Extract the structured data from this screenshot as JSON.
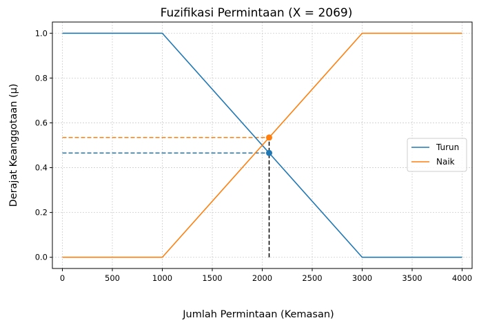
{
  "chart_data": {
    "type": "line",
    "title": "Fuzifikasi Permintaan (X = 2069)",
    "xlabel": "Jumlah Permintaan (Kemasan)",
    "ylabel": "Derajat Keanggotaan (μ)",
    "xlim": [
      -100,
      4100
    ],
    "ylim": [
      -0.05,
      1.05
    ],
    "xticks": [
      0,
      500,
      1000,
      1500,
      2000,
      2500,
      3000,
      3500,
      4000
    ],
    "xtick_labels": [
      "0",
      "500",
      "1000",
      "1500",
      "2000",
      "2500",
      "3000",
      "3500",
      "4000"
    ],
    "yticks": [
      0.0,
      0.2,
      0.4,
      0.6,
      0.8,
      1.0
    ],
    "ytick_labels": [
      "0.0",
      "0.2",
      "0.4",
      "0.6",
      "0.8",
      "1.0"
    ],
    "grid": true,
    "legend_position": "center-right",
    "series": [
      {
        "name": "Turun",
        "color": "#1f77b4",
        "x": [
          0,
          1000,
          3000,
          4000
        ],
        "y": [
          1.0,
          1.0,
          0.0,
          0.0
        ]
      },
      {
        "name": "Naik",
        "color": "#ff7f0e",
        "x": [
          0,
          1000,
          3000,
          4000
        ],
        "y": [
          0.0,
          0.0,
          1.0,
          1.0
        ]
      }
    ],
    "input_value": 2069,
    "markers": [
      {
        "series": "Turun",
        "x": 2069,
        "y": 0.4655,
        "color": "#1f77b4"
      },
      {
        "series": "Naik",
        "x": 2069,
        "y": 0.5345,
        "color": "#ff7f0e"
      }
    ],
    "vertical_line_color": "#000000"
  }
}
